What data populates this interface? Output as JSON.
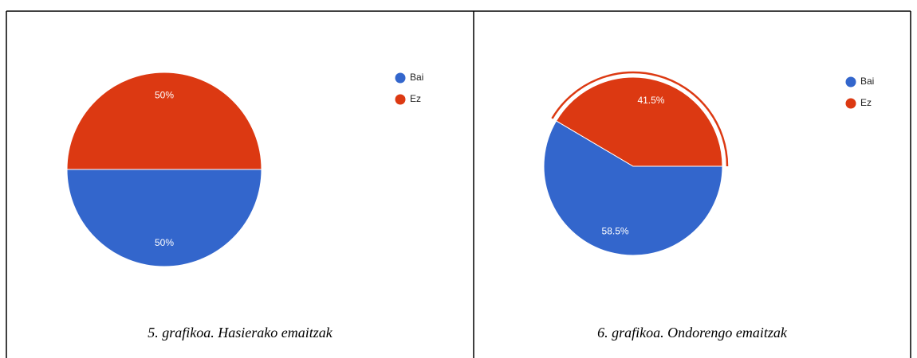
{
  "chart_data": [
    {
      "type": "pie",
      "categories": [
        "Bai",
        "Ez"
      ],
      "values": [
        50,
        50
      ],
      "value_labels": [
        "50%",
        "50%"
      ],
      "colors": [
        "#3366cc",
        "#dc3912"
      ],
      "caption": "5. grafikoa. Hasierako emaitzak"
    },
    {
      "type": "pie",
      "categories": [
        "Bai",
        "Ez"
      ],
      "values": [
        58.5,
        41.5
      ],
      "value_labels": [
        "58.5%",
        "41.5%"
      ],
      "colors": [
        "#3366cc",
        "#dc3912"
      ],
      "caption": "6. grafikoa. Ondorengo emaitzak",
      "highlight": 1
    }
  ]
}
